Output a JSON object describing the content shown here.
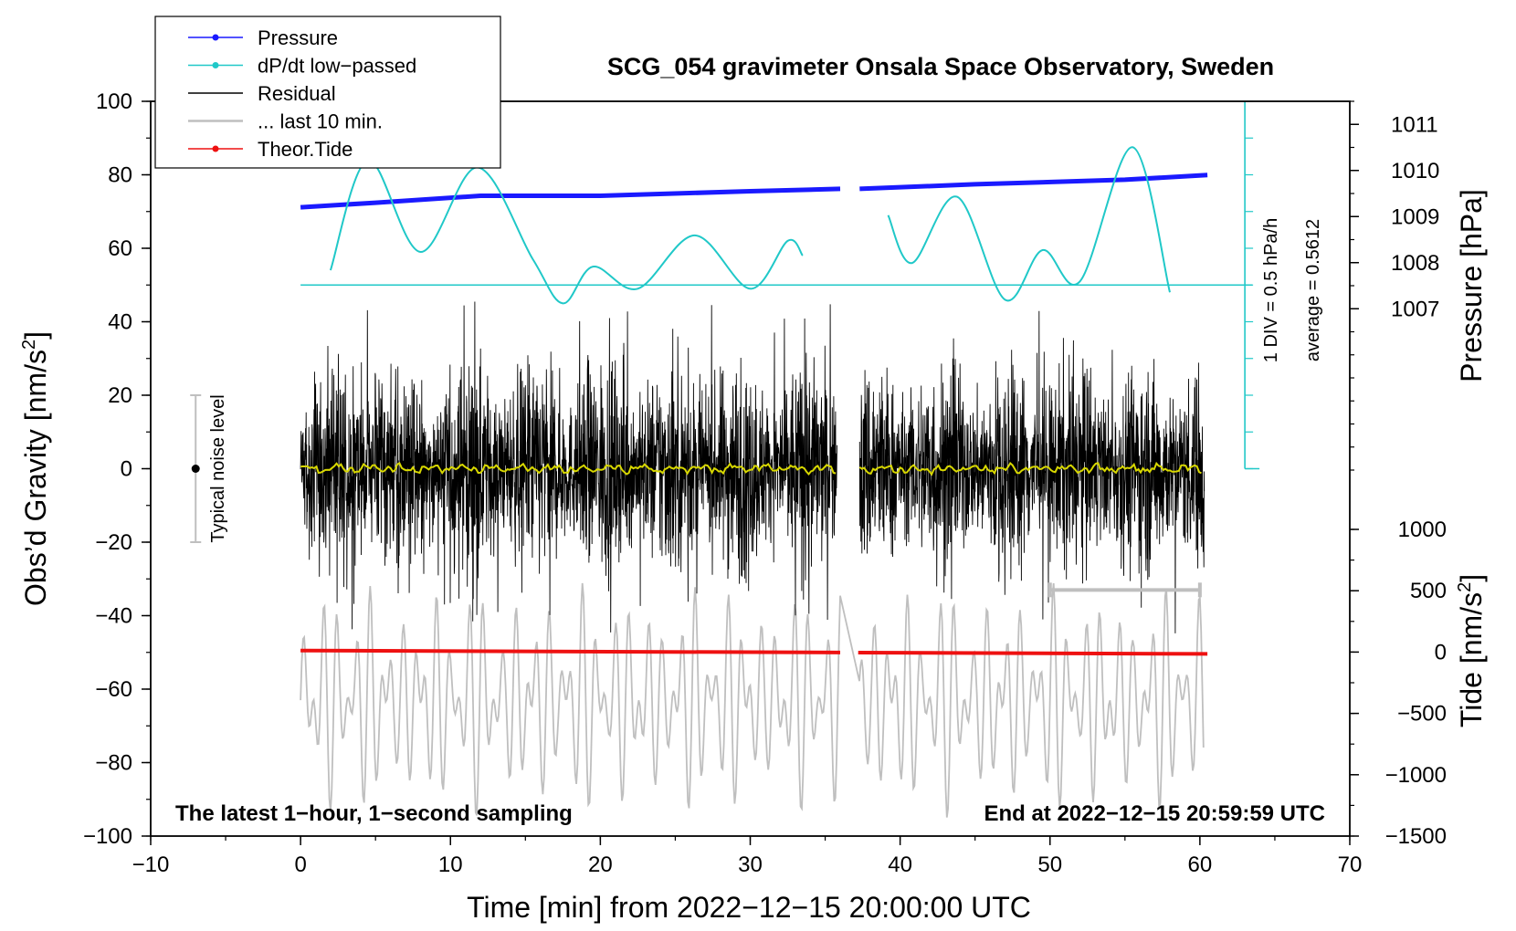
{
  "chart_data": {
    "type": "line",
    "title": "SCG_054 gravimeter Onsala Space Observatory, Sweden",
    "xlabel": "Time [min] from 2022−12−15 20:00:00 UTC",
    "ylabel_left": "Obs’d Gravity [nm/s",
    "ylabel_left_sup": "2",
    "ylabel_left_end": "]",
    "ylabel_right_top": "Pressure [hPa]",
    "ylabel_right_bottom": "Tide [nm/s",
    "ylabel_right_bottom_sup": "2",
    "ylabel_right_bottom_end": "]",
    "xlim": [
      -10,
      70
    ],
    "ylim": [
      -100,
      100
    ],
    "x_ticks": [
      -10,
      0,
      10,
      20,
      30,
      40,
      50,
      60,
      70
    ],
    "x_tick_labels": [
      "−10",
      "0",
      "10",
      "20",
      "30",
      "40",
      "50",
      "60",
      "70"
    ],
    "y_ticks": [
      -100,
      -80,
      -60,
      -40,
      -20,
      0,
      20,
      40,
      60,
      80,
      100
    ],
    "y_tick_labels": [
      "−100",
      "−80",
      "−60",
      "−40",
      "−20",
      "0",
      "20",
      "40",
      "60",
      "80",
      "100"
    ],
    "pressure_axis": {
      "ticks": [
        1007,
        1008,
        1009,
        1010,
        1011
      ],
      "tick_labels": [
        "1007",
        "1008",
        "1009",
        "1010",
        "1011"
      ],
      "range_hpa": [
        1003.5,
        1011.5
      ]
    },
    "tide_axis": {
      "ticks": [
        -1500,
        -1000,
        -500,
        0,
        500,
        1000
      ],
      "tick_labels": [
        "−1500",
        "−1000",
        "−500",
        "0",
        "500",
        "1000"
      ],
      "range": [
        -1500,
        1000
      ]
    },
    "legend": [
      {
        "label": "Pressure",
        "color": "#1a1aff",
        "marker": true
      },
      {
        "label": "dP/dt low−passed",
        "color": "#20c8c8",
        "marker": true
      },
      {
        "label": "Residual",
        "color": "#000000",
        "marker": false
      },
      {
        "label": "... last 10 min.",
        "color": "#bfbfbf",
        "marker": false
      },
      {
        "label": "Theor.Tide",
        "color": "#ee1111",
        "marker": true
      }
    ],
    "legend_placement": "top-left",
    "annotations": {
      "bottom_left": "The latest 1−hour, 1−second sampling",
      "bottom_right": "End at 2022−12−15 20:59:59 UTC",
      "noise_label": "Typical noise level",
      "dpdt_scale": "1 DIV = 0.5 hPa/h",
      "dpdt_average": "average = 0.5612"
    },
    "noise_bar": {
      "x": -7,
      "center": 0,
      "halfwidth": 20
    },
    "last10_bar": {
      "x_start": 50,
      "x_end": 60,
      "y": -33
    },
    "dpdt_axis": {
      "x": 63,
      "y_bottom": 0,
      "y_top": 100,
      "baseline_y": 50
    },
    "gap_minutes": [
      36.0,
      37.2
    ],
    "pressure_series": [
      {
        "x": 0,
        "hpa": 1009.2
      },
      {
        "x": 5,
        "hpa": 1009.3
      },
      {
        "x": 12,
        "hpa": 1009.45
      },
      {
        "x": 20,
        "hpa": 1009.45
      },
      {
        "x": 30,
        "hpa": 1009.55
      },
      {
        "x": 36,
        "hpa": 1009.6
      },
      {
        "x": 37.3,
        "hpa": 1009.6
      },
      {
        "x": 45,
        "hpa": 1009.7
      },
      {
        "x": 55,
        "hpa": 1009.8
      },
      {
        "x": 60.5,
        "hpa": 1009.9
      }
    ],
    "dpdt_series": [
      {
        "x": 2,
        "y": 54
      },
      {
        "x": 4.5,
        "y": 84
      },
      {
        "x": 8,
        "y": 59
      },
      {
        "x": 11.8,
        "y": 82
      },
      {
        "x": 15.5,
        "y": 57
      },
      {
        "x": 17.5,
        "y": 45
      },
      {
        "x": 19.5,
        "y": 55
      },
      {
        "x": 22.5,
        "y": 49
      },
      {
        "x": 26.3,
        "y": 63.5
      },
      {
        "x": 30,
        "y": 49
      },
      {
        "x": 32.5,
        "y": 62
      },
      {
        "x": 33.5,
        "y": 58
      },
      {
        "x": 39.2,
        "y": 69
      },
      {
        "x": 40.8,
        "y": 56
      },
      {
        "x": 43.8,
        "y": 74
      },
      {
        "x": 47,
        "y": 46
      },
      {
        "x": 49.5,
        "y": 59.5
      },
      {
        "x": 52,
        "y": 51
      },
      {
        "x": 55.5,
        "y": 87.5
      },
      {
        "x": 58,
        "y": 48
      }
    ],
    "tide_series": [
      {
        "x": 0,
        "y": -49.5
      },
      {
        "x": 30,
        "y": -49.8
      },
      {
        "x": 60.5,
        "y": -50.4
      }
    ],
    "residual_series": {
      "x_start": 0,
      "x_end": 60.3,
      "amplitude_nm_s2": 12,
      "peak_max": 46,
      "peak_min": -46
    },
    "last10_trace": {
      "center": -63,
      "amplitude": 25
    }
  }
}
